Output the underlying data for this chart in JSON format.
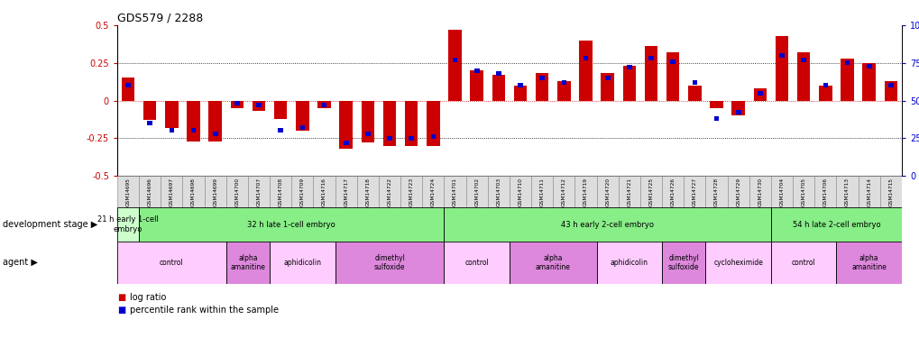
{
  "title": "GDS579 / 2288",
  "samples": [
    "GSM14695",
    "GSM14696",
    "GSM14697",
    "GSM14698",
    "GSM14699",
    "GSM14700",
    "GSM14707",
    "GSM14708",
    "GSM14709",
    "GSM14716",
    "GSM14717",
    "GSM14718",
    "GSM14722",
    "GSM14723",
    "GSM14724",
    "GSM14701",
    "GSM14702",
    "GSM14703",
    "GSM14710",
    "GSM14711",
    "GSM14712",
    "GSM14719",
    "GSM14720",
    "GSM14721",
    "GSM14725",
    "GSM14726",
    "GSM14727",
    "GSM14728",
    "GSM14729",
    "GSM14730",
    "GSM14704",
    "GSM14705",
    "GSM14706",
    "GSM14713",
    "GSM14714",
    "GSM14715"
  ],
  "log_ratio": [
    0.15,
    -0.13,
    -0.18,
    -0.27,
    -0.27,
    -0.05,
    -0.07,
    -0.12,
    -0.2,
    -0.05,
    -0.32,
    -0.28,
    -0.3,
    -0.3,
    -0.3,
    0.47,
    0.2,
    0.17,
    0.1,
    0.18,
    0.13,
    0.4,
    0.18,
    0.23,
    0.36,
    0.32,
    0.1,
    -0.05,
    -0.1,
    0.08,
    0.43,
    0.32,
    0.1,
    0.28,
    0.25,
    0.13
  ],
  "percentile": [
    60,
    35,
    30,
    30,
    28,
    48,
    47,
    30,
    32,
    47,
    22,
    28,
    25,
    25,
    26,
    77,
    70,
    68,
    60,
    65,
    62,
    78,
    65,
    72,
    78,
    76,
    62,
    38,
    42,
    55,
    80,
    77,
    60,
    75,
    73,
    60
  ],
  "dev_stage_groups": [
    {
      "label": "21 h early 1-cell\nembryо",
      "start": 0,
      "end": 1,
      "color": "#ccffcc"
    },
    {
      "label": "32 h late 1-cell embryo",
      "start": 1,
      "end": 15,
      "color": "#88ee88"
    },
    {
      "label": "43 h early 2-cell embryo",
      "start": 15,
      "end": 30,
      "color": "#88ee88"
    },
    {
      "label": "54 h late 2-cell embryo",
      "start": 30,
      "end": 36,
      "color": "#88ee88"
    }
  ],
  "agent_groups": [
    {
      "label": "control",
      "start": 0,
      "end": 5,
      "color": "#ffccff"
    },
    {
      "label": "alpha\namanitine",
      "start": 5,
      "end": 7,
      "color": "#dd88dd"
    },
    {
      "label": "aphidicolin",
      "start": 7,
      "end": 10,
      "color": "#ffccff"
    },
    {
      "label": "dimethyl\nsulfoxide",
      "start": 10,
      "end": 15,
      "color": "#dd88dd"
    },
    {
      "label": "control",
      "start": 15,
      "end": 18,
      "color": "#ffccff"
    },
    {
      "label": "alpha\namanitine",
      "start": 18,
      "end": 22,
      "color": "#dd88dd"
    },
    {
      "label": "aphidicolin",
      "start": 22,
      "end": 25,
      "color": "#ffccff"
    },
    {
      "label": "dimethyl\nsulfoxide",
      "start": 25,
      "end": 27,
      "color": "#dd88dd"
    },
    {
      "label": "cycloheximide",
      "start": 27,
      "end": 30,
      "color": "#ffccff"
    },
    {
      "label": "control",
      "start": 30,
      "end": 33,
      "color": "#ffccff"
    },
    {
      "label": "alpha\namanitine",
      "start": 33,
      "end": 36,
      "color": "#dd88dd"
    }
  ],
  "bar_color": "#cc0000",
  "pct_color": "#0000cc",
  "ylim": [
    -0.5,
    0.5
  ],
  "pct_ylim": [
    0,
    100
  ],
  "hline_vals": [
    0.25,
    0.0,
    -0.25
  ],
  "left_label_dev": "development stage ▶",
  "left_label_agent": "agent ▶",
  "legend_log": "log ratio",
  "legend_pct": "percentile rank within the sample",
  "xlabel_bg": "#dddddd"
}
